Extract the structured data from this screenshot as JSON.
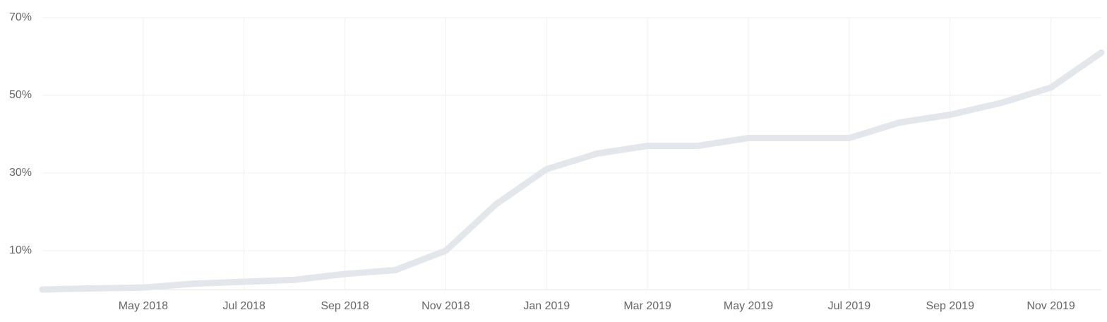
{
  "chart_data": {
    "type": "line",
    "x": [
      "2018-03",
      "2018-04",
      "2018-05",
      "2018-06",
      "2018-07",
      "2018-08",
      "2018-09",
      "2018-10",
      "2018-11",
      "2018-12",
      "2019-01",
      "2019-02",
      "2019-03",
      "2019-04",
      "2019-05",
      "2019-06",
      "2019-07",
      "2019-08",
      "2019-09",
      "2019-10",
      "2019-11",
      "2019-12"
    ],
    "series": [
      {
        "color": "#e3e7eb",
        "values": [
          0,
          0.3,
          0.5,
          1.5,
          2,
          2.5,
          4,
          5,
          10,
          22,
          31,
          35,
          37,
          37,
          39,
          39,
          39,
          43,
          45,
          48,
          52,
          61
        ]
      }
    ],
    "xlim": [
      "2018-03",
      "2019-12"
    ],
    "xticks": [
      {
        "value": "2018-05",
        "label": "May 2018"
      },
      {
        "value": "2018-07",
        "label": "Jul 2018"
      },
      {
        "value": "2018-09",
        "label": "Sep 2018"
      },
      {
        "value": "2018-11",
        "label": "Nov 2018"
      },
      {
        "value": "2019-01",
        "label": "Jan 2019"
      },
      {
        "value": "2019-03",
        "label": "Mar 2019"
      },
      {
        "value": "2019-05",
        "label": "May 2019"
      },
      {
        "value": "2019-07",
        "label": "Jul 2019"
      },
      {
        "value": "2019-09",
        "label": "Sep 2019"
      },
      {
        "value": "2019-11",
        "label": "Nov 2019"
      }
    ],
    "ylim": [
      0,
      70
    ],
    "yticks": [
      {
        "value": 10,
        "label": "10%"
      },
      {
        "value": 30,
        "label": "30%"
      },
      {
        "value": 50,
        "label": "50%"
      },
      {
        "value": 70,
        "label": "70%"
      }
    ],
    "grid": true
  }
}
